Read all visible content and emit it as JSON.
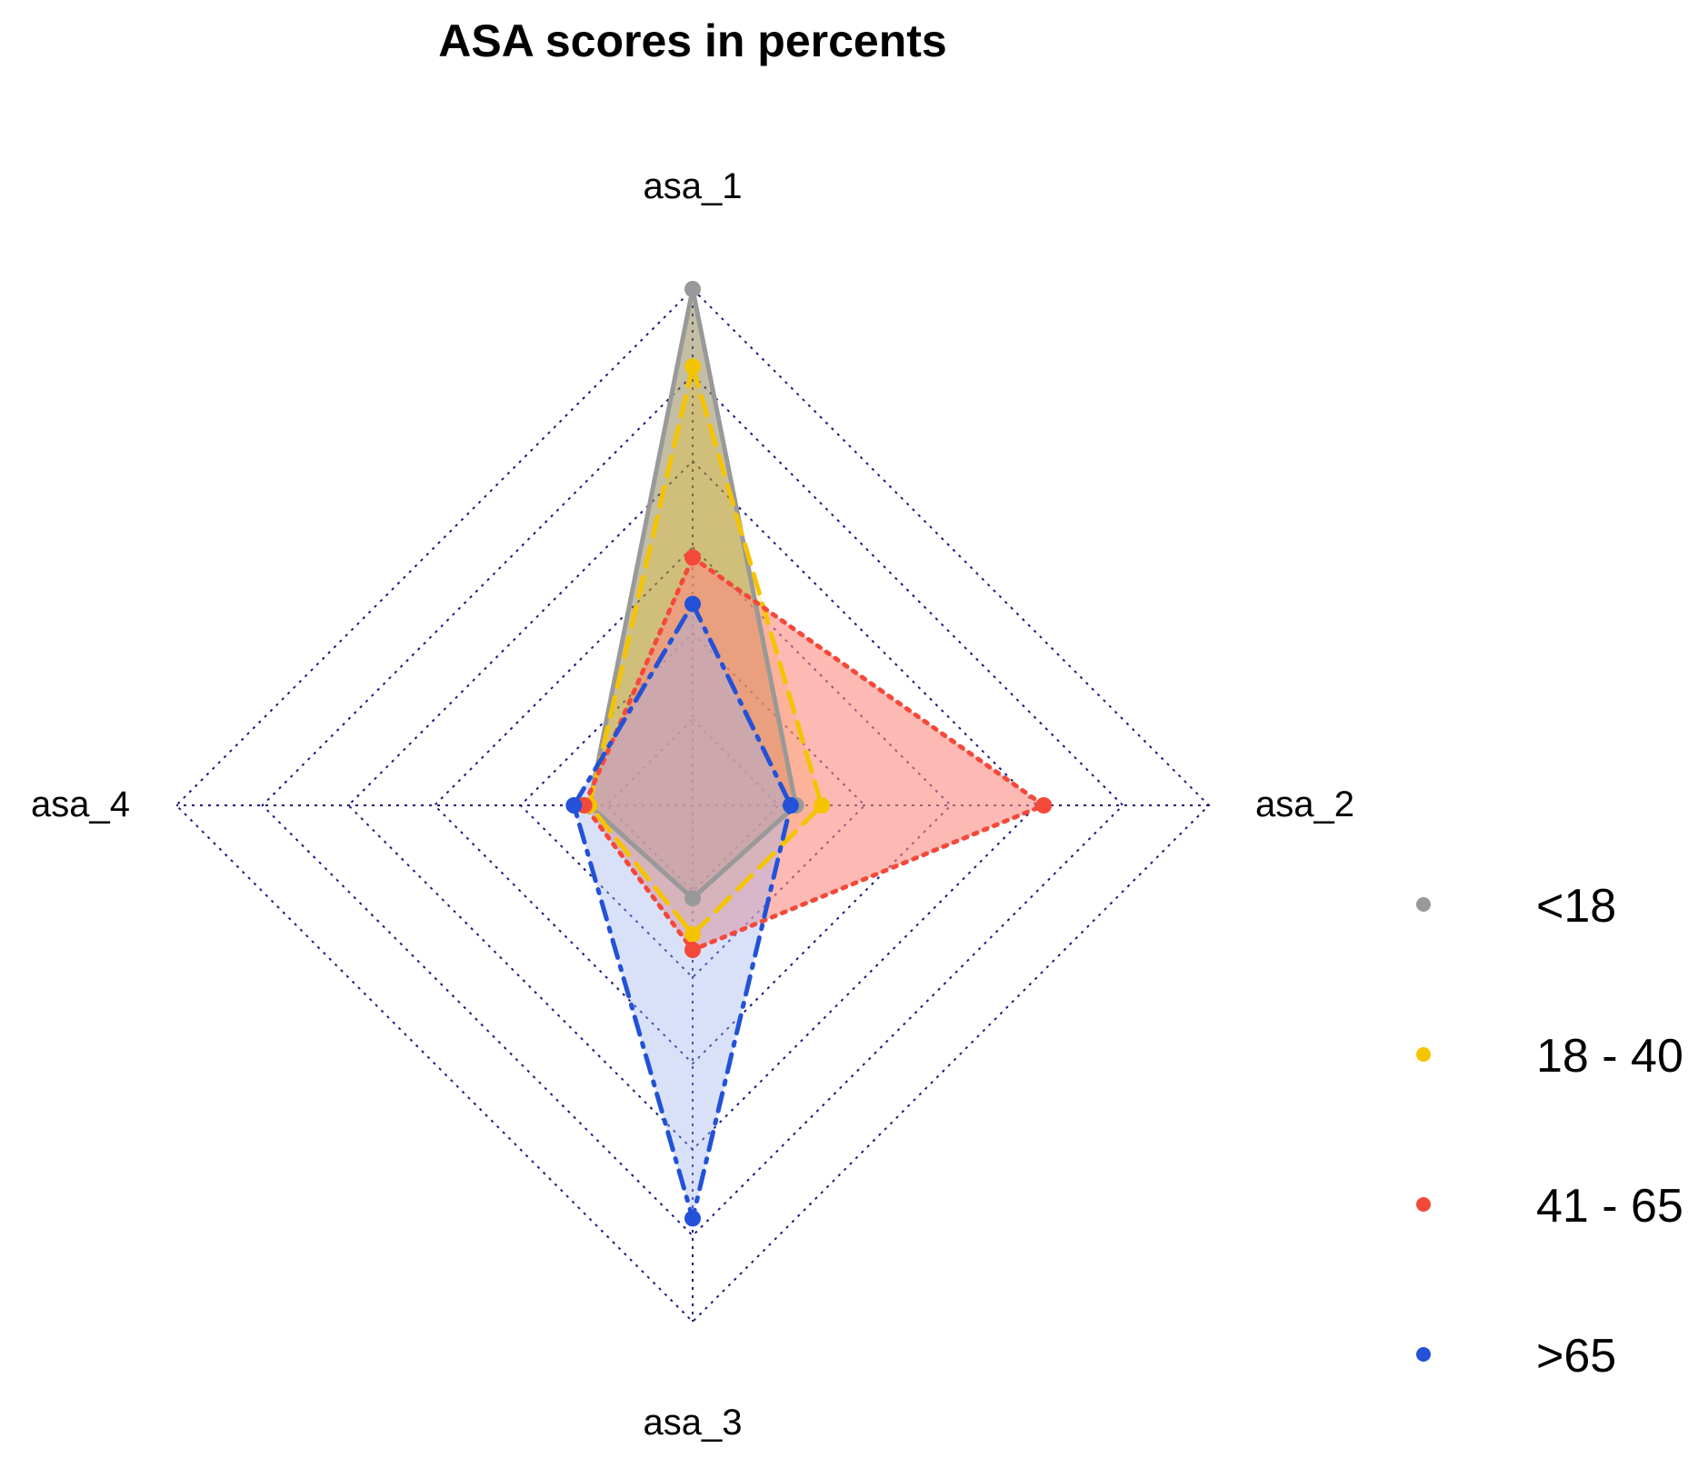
{
  "chart_data": {
    "type": "radar",
    "title": "ASA scores in percents",
    "axes": [
      "asa_1",
      "asa_2",
      "asa_3",
      "asa_4"
    ],
    "range": [
      0,
      100
    ],
    "grid_levels": 6,
    "grid_color": "#1a1a7a",
    "legend_position": "right",
    "series": [
      {
        "name": "<18",
        "color": "#999999",
        "fill": "#8a7d4a",
        "fill_opacity": 0.5,
        "line_style": "solid",
        "values": [
          100,
          20,
          18,
          20
        ]
      },
      {
        "name": "18 - 40",
        "color": "#f5c400",
        "fill": "#f5c400",
        "fill_opacity": 0.25,
        "line_style": "longdash",
        "values": [
          85,
          25,
          25,
          20
        ]
      },
      {
        "name": "41 - 65",
        "color": "#f4493a",
        "fill": "#fb8a80",
        "fill_opacity": 0.6,
        "line_style": "dotted",
        "values": [
          48,
          68,
          28,
          21
        ]
      },
      {
        "name": ">65",
        "color": "#2352d8",
        "fill": "#9fb3ef",
        "fill_opacity": 0.4,
        "line_style": "dashdot",
        "values": [
          39,
          19,
          80,
          23
        ]
      }
    ]
  }
}
